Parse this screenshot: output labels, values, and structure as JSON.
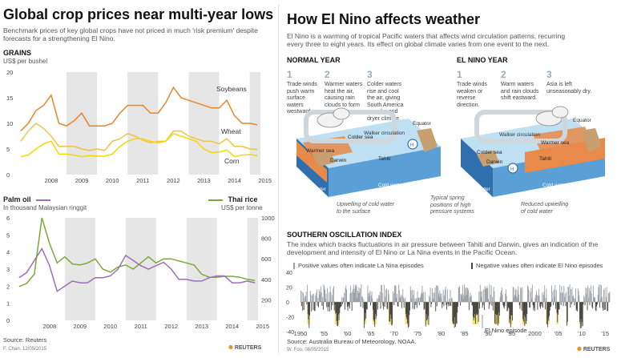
{
  "left": {
    "title": "Global crop prices near multi-year lows",
    "subtitle": "Benchmark prices of key global crops have not priced in much 'risk premium' despite forecasts for a strengthening El Nino.",
    "source": "Source: Reuters",
    "credit": "F. Chan, 12/05/2015",
    "brand": "REUTERS"
  },
  "right": {
    "title": "How El Nino affects weather",
    "intro": "El Nino is a warming of tropical Pacific waters that affects wind circulation patterns, recurring every three to eight years. Its effect on global climate varies from one event to the next.",
    "normal": {
      "heading": "NORMAL YEAR",
      "steps": [
        {
          "num": "1",
          "text": "Trade winds push warm surface waters westward."
        },
        {
          "num": "2",
          "text": "Warmer waters heat the air, causing rain clouds to form over Asia."
        },
        {
          "num": "3",
          "text": "Colder waters rise and cool the air, giving South America a cooler and dryer climate."
        }
      ],
      "labels": {
        "walker": "Walker circulation",
        "equator": "Equator",
        "warmer_sea": "Warmer sea",
        "colder_sea": "Colder sea",
        "darwin": "Darwin",
        "tahiti": "Tahiti",
        "warm_water": "Warm water",
        "cold_water": "Cold water",
        "upwelling": "Upwelling of cold water to the surface",
        "spring": "Typical spring positions of high pressure systems"
      }
    },
    "elnino": {
      "heading": "EL NINO YEAR",
      "steps": [
        {
          "num": "1",
          "text": "Trade winds weaken or reverse direction."
        },
        {
          "num": "2",
          "text": "Warm waters and rain clouds shift eastward."
        },
        {
          "num": "3",
          "text": "Asia is left unseasonably dry."
        }
      ],
      "labels": {
        "walker": "Walker circulation",
        "equator": "Equator",
        "warmer_sea": "Warmer sea",
        "colder_sea": "Colder sea",
        "darwin": "Darwin",
        "tahiti": "Tahiti",
        "warm_water": "Warm water",
        "cold_water": "Cold water",
        "reduced": "Reduced upwelling of cold water"
      }
    },
    "soi": {
      "heading": "SOUTHERN OSCILLATION INDEX",
      "desc": "The index which tracks fluctuations in air pressure between Tahiti and Darwin, gives an indication of the development and intensity of El Nino or La Nina events in the Pacific Ocean.",
      "legend_pos": "Positive values often indicate La Nina episodes",
      "legend_neg": "Negative values often indicate El Nino episodes",
      "annotation": "El Nino episode",
      "source": "Source: Australia Bureau of Meteorology, NOAA.",
      "credit": "W. Foo, 08/05/2015",
      "brand": "REUTERS"
    }
  },
  "colors": {
    "soybeans": "#e8852a",
    "wheat": "#f0c24a",
    "corn": "#f5d800",
    "palm": "#9b6fb5",
    "rice": "#7aa83a",
    "band": "#e6e6e6",
    "soi_pos": "#9aa0a6",
    "soi_neg": "#444444",
    "soi_band": "#f5e07a",
    "ocean_warm": "#e88a4a",
    "ocean": "#4a8cc8"
  },
  "chart_data": [
    {
      "type": "line",
      "title": "GRAINS",
      "ylabel": "US$ per bushel",
      "ylim": [
        0,
        20
      ],
      "yticks": [
        0,
        5,
        10,
        15,
        20
      ],
      "xticks": [
        "2008",
        "2009",
        "2010",
        "2011",
        "2012",
        "2013",
        "2014",
        "2015"
      ],
      "x": [
        2007.5,
        2007.75,
        2008.0,
        2008.25,
        2008.5,
        2008.75,
        2009.0,
        2009.25,
        2009.5,
        2009.75,
        2010.0,
        2010.25,
        2010.5,
        2010.75,
        2011.0,
        2011.25,
        2011.5,
        2011.75,
        2012.0,
        2012.25,
        2012.5,
        2012.75,
        2013.0,
        2013.25,
        2013.5,
        2013.75,
        2014.0,
        2014.25,
        2014.5,
        2014.75,
        2015.0,
        2015.25
      ],
      "series": [
        {
          "name": "Soybeans",
          "values": [
            8.5,
            10.0,
            12.5,
            13.5,
            15.5,
            10.0,
            9.5,
            10.5,
            12.0,
            9.5,
            9.5,
            9.5,
            10.0,
            12.0,
            13.5,
            13.5,
            13.5,
            12.0,
            12.0,
            14.0,
            17.0,
            15.0,
            14.5,
            14.0,
            13.5,
            13.0,
            13.0,
            14.5,
            11.5,
            10.0,
            10.0,
            9.7
          ]
        },
        {
          "name": "Wheat",
          "values": [
            6.5,
            8.5,
            10.0,
            9.0,
            7.5,
            5.5,
            5.5,
            5.5,
            5.0,
            4.7,
            5.0,
            4.7,
            6.5,
            7.0,
            8.0,
            7.5,
            6.7,
            6.2,
            6.5,
            6.5,
            8.5,
            8.5,
            7.5,
            7.0,
            6.5,
            6.5,
            6.0,
            7.0,
            5.5,
            5.5,
            5.0,
            4.9
          ]
        },
        {
          "name": "Corn",
          "values": [
            3.5,
            3.8,
            5.0,
            6.0,
            6.5,
            4.0,
            4.0,
            3.8,
            3.5,
            3.7,
            3.6,
            3.6,
            4.0,
            5.5,
            6.5,
            7.0,
            7.0,
            6.5,
            6.2,
            6.5,
            8.0,
            7.5,
            7.0,
            6.5,
            5.0,
            4.3,
            4.4,
            4.8,
            3.5,
            3.8,
            3.9,
            3.7
          ]
        }
      ],
      "shading": "alternate years shaded",
      "grid": false
    },
    {
      "type": "line",
      "title": "Palm oil / Thai rice",
      "ylabel_left": "In thousand Malaysian ringgit",
      "ylabel_right": "US$ per tonne",
      "ylim_left": [
        0,
        6
      ],
      "ylim_right": [
        0,
        1000
      ],
      "yticks_left": [
        0,
        1,
        2,
        3,
        4,
        5,
        6
      ],
      "yticks_right": [
        200,
        400,
        600,
        800,
        1000
      ],
      "xticks": [
        "2008",
        "2009",
        "2010",
        "2011",
        "2012",
        "2013",
        "2014",
        "2015"
      ],
      "x": [
        2007.5,
        2007.75,
        2008.0,
        2008.25,
        2008.5,
        2008.75,
        2009.0,
        2009.25,
        2009.5,
        2009.75,
        2010.0,
        2010.25,
        2010.5,
        2010.75,
        2011.0,
        2011.25,
        2011.5,
        2011.75,
        2012.0,
        2012.25,
        2012.5,
        2012.75,
        2013.0,
        2013.25,
        2013.5,
        2013.75,
        2014.0,
        2014.25,
        2014.5,
        2014.75,
        2015.0,
        2015.25
      ],
      "series": [
        {
          "name": "Palm oil",
          "axis": "left",
          "values": [
            2.5,
            2.8,
            3.5,
            4.2,
            3.2,
            1.7,
            2.0,
            2.3,
            2.2,
            2.2,
            2.5,
            2.5,
            2.6,
            3.0,
            3.8,
            3.5,
            3.2,
            3.0,
            3.2,
            3.4,
            3.0,
            2.4,
            2.4,
            2.3,
            2.3,
            2.5,
            2.6,
            2.6,
            2.2,
            2.2,
            2.3,
            2.2
          ]
        },
        {
          "name": "Thai rice",
          "axis": "right",
          "values": [
            330,
            360,
            450,
            1000,
            750,
            560,
            620,
            550,
            540,
            560,
            600,
            500,
            470,
            520,
            540,
            500,
            560,
            620,
            560,
            600,
            600,
            580,
            560,
            540,
            450,
            420,
            420,
            430,
            430,
            420,
            400,
            390
          ]
        }
      ],
      "shading": "alternate years shaded",
      "grid": false
    },
    {
      "type": "bar",
      "title": "SOUTHERN OSCILLATION INDEX",
      "ylim": [
        -40,
        40
      ],
      "xticks": [
        "1950",
        "'55",
        "'60",
        "'65",
        "'70",
        "'75",
        "'80",
        "'85",
        "'90",
        "'95",
        "2000",
        "'05",
        "'10",
        "'15"
      ],
      "x_range": [
        1950,
        2016
      ],
      "el_nino_episodes": [
        [
          1951.4,
          1952.0
        ],
        [
          1957.3,
          1958.3
        ],
        [
          1963.5,
          1964.0
        ],
        [
          1965.4,
          1966.2
        ],
        [
          1968.8,
          1969.6
        ],
        [
          1972.3,
          1973.2
        ],
        [
          1976.6,
          1977.3
        ],
        [
          1982.3,
          1983.4
        ],
        [
          1986.7,
          1988.0
        ],
        [
          1991.3,
          1992.5
        ],
        [
          1994.5,
          1995.2
        ],
        [
          1997.3,
          1998.3
        ],
        [
          2002.4,
          2003.1
        ],
        [
          2004.6,
          2005.0
        ],
        [
          2006.7,
          2007.0
        ],
        [
          2009.5,
          2010.2
        ]
      ],
      "annotated_episode": "1991-1992"
    }
  ]
}
